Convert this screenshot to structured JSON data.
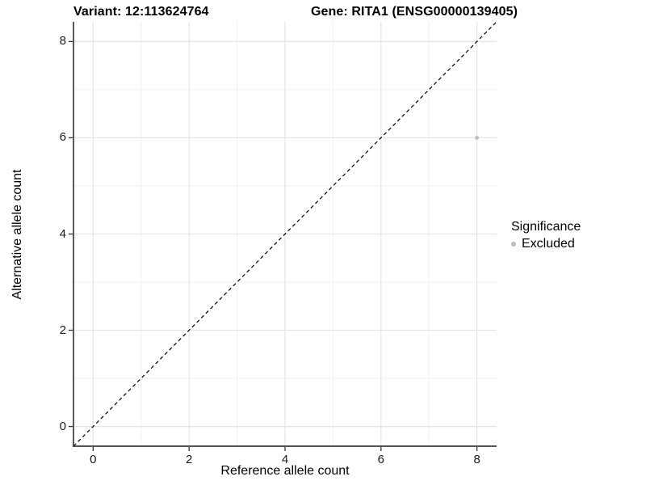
{
  "chart_data": {
    "type": "scatter",
    "titles": {
      "left": "Variant: 12:113624764",
      "right": "Gene: RITA1 (ENSG00000139405)"
    },
    "xlabel": "Reference allele count",
    "ylabel": "Alternative allele count",
    "xticks": [
      0,
      2,
      4,
      6,
      8
    ],
    "yticks": [
      0,
      2,
      4,
      6,
      8
    ],
    "xlim": [
      -0.41,
      8.41
    ],
    "ylim": [
      -0.41,
      8.41
    ],
    "minor_ticks_x": [
      1,
      3,
      5,
      7
    ],
    "minor_ticks_y": [
      1,
      3,
      5,
      7
    ],
    "grid": {
      "major": true,
      "minor": true
    },
    "identity_line": {
      "slope": 1,
      "intercept": 0,
      "style": "dashed",
      "color": "#000000"
    },
    "points": [
      {
        "x": 8,
        "y": 6,
        "significance": "Excluded"
      }
    ],
    "legend": {
      "title": "Significance",
      "position": "right",
      "items": [
        {
          "label": "Excluded",
          "color": "#bdbdbd"
        }
      ]
    },
    "colors": {
      "point": "#bdbdbd",
      "grid_major": "#e4e4e4",
      "grid_minor": "#f1f1f1",
      "axis_line": "#3c3c3c",
      "tick_mark": "#333333",
      "text": "#000000",
      "background": "#ffffff"
    }
  }
}
